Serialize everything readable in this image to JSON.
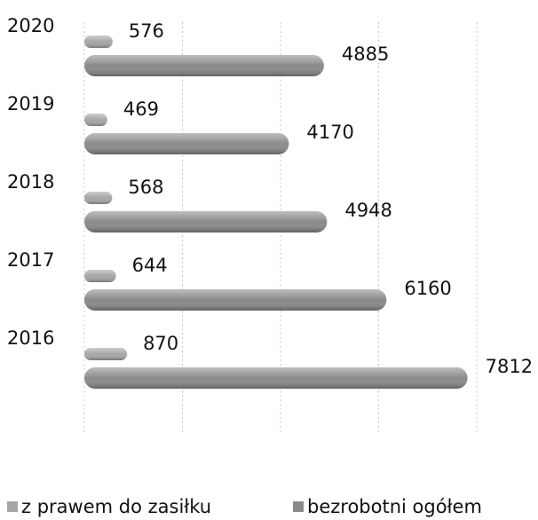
{
  "chart_data": {
    "type": "barh",
    "categories": [
      "2020",
      "2019",
      "2018",
      "2017",
      "2016"
    ],
    "series": [
      {
        "name": "z prawem do zasiłku",
        "color": "#a6a6a6",
        "values": [
          576,
          469,
          568,
          644,
          870
        ]
      },
      {
        "name": "bezrobotni ogółem",
        "color": "#8a8a8a",
        "values": [
          4885,
          4170,
          4948,
          6160,
          7812
        ]
      }
    ],
    "xlim": [
      0,
      8000
    ],
    "xticks": [
      0,
      2000,
      4000,
      6000,
      8000
    ],
    "grid": true,
    "legend": "bottom"
  }
}
